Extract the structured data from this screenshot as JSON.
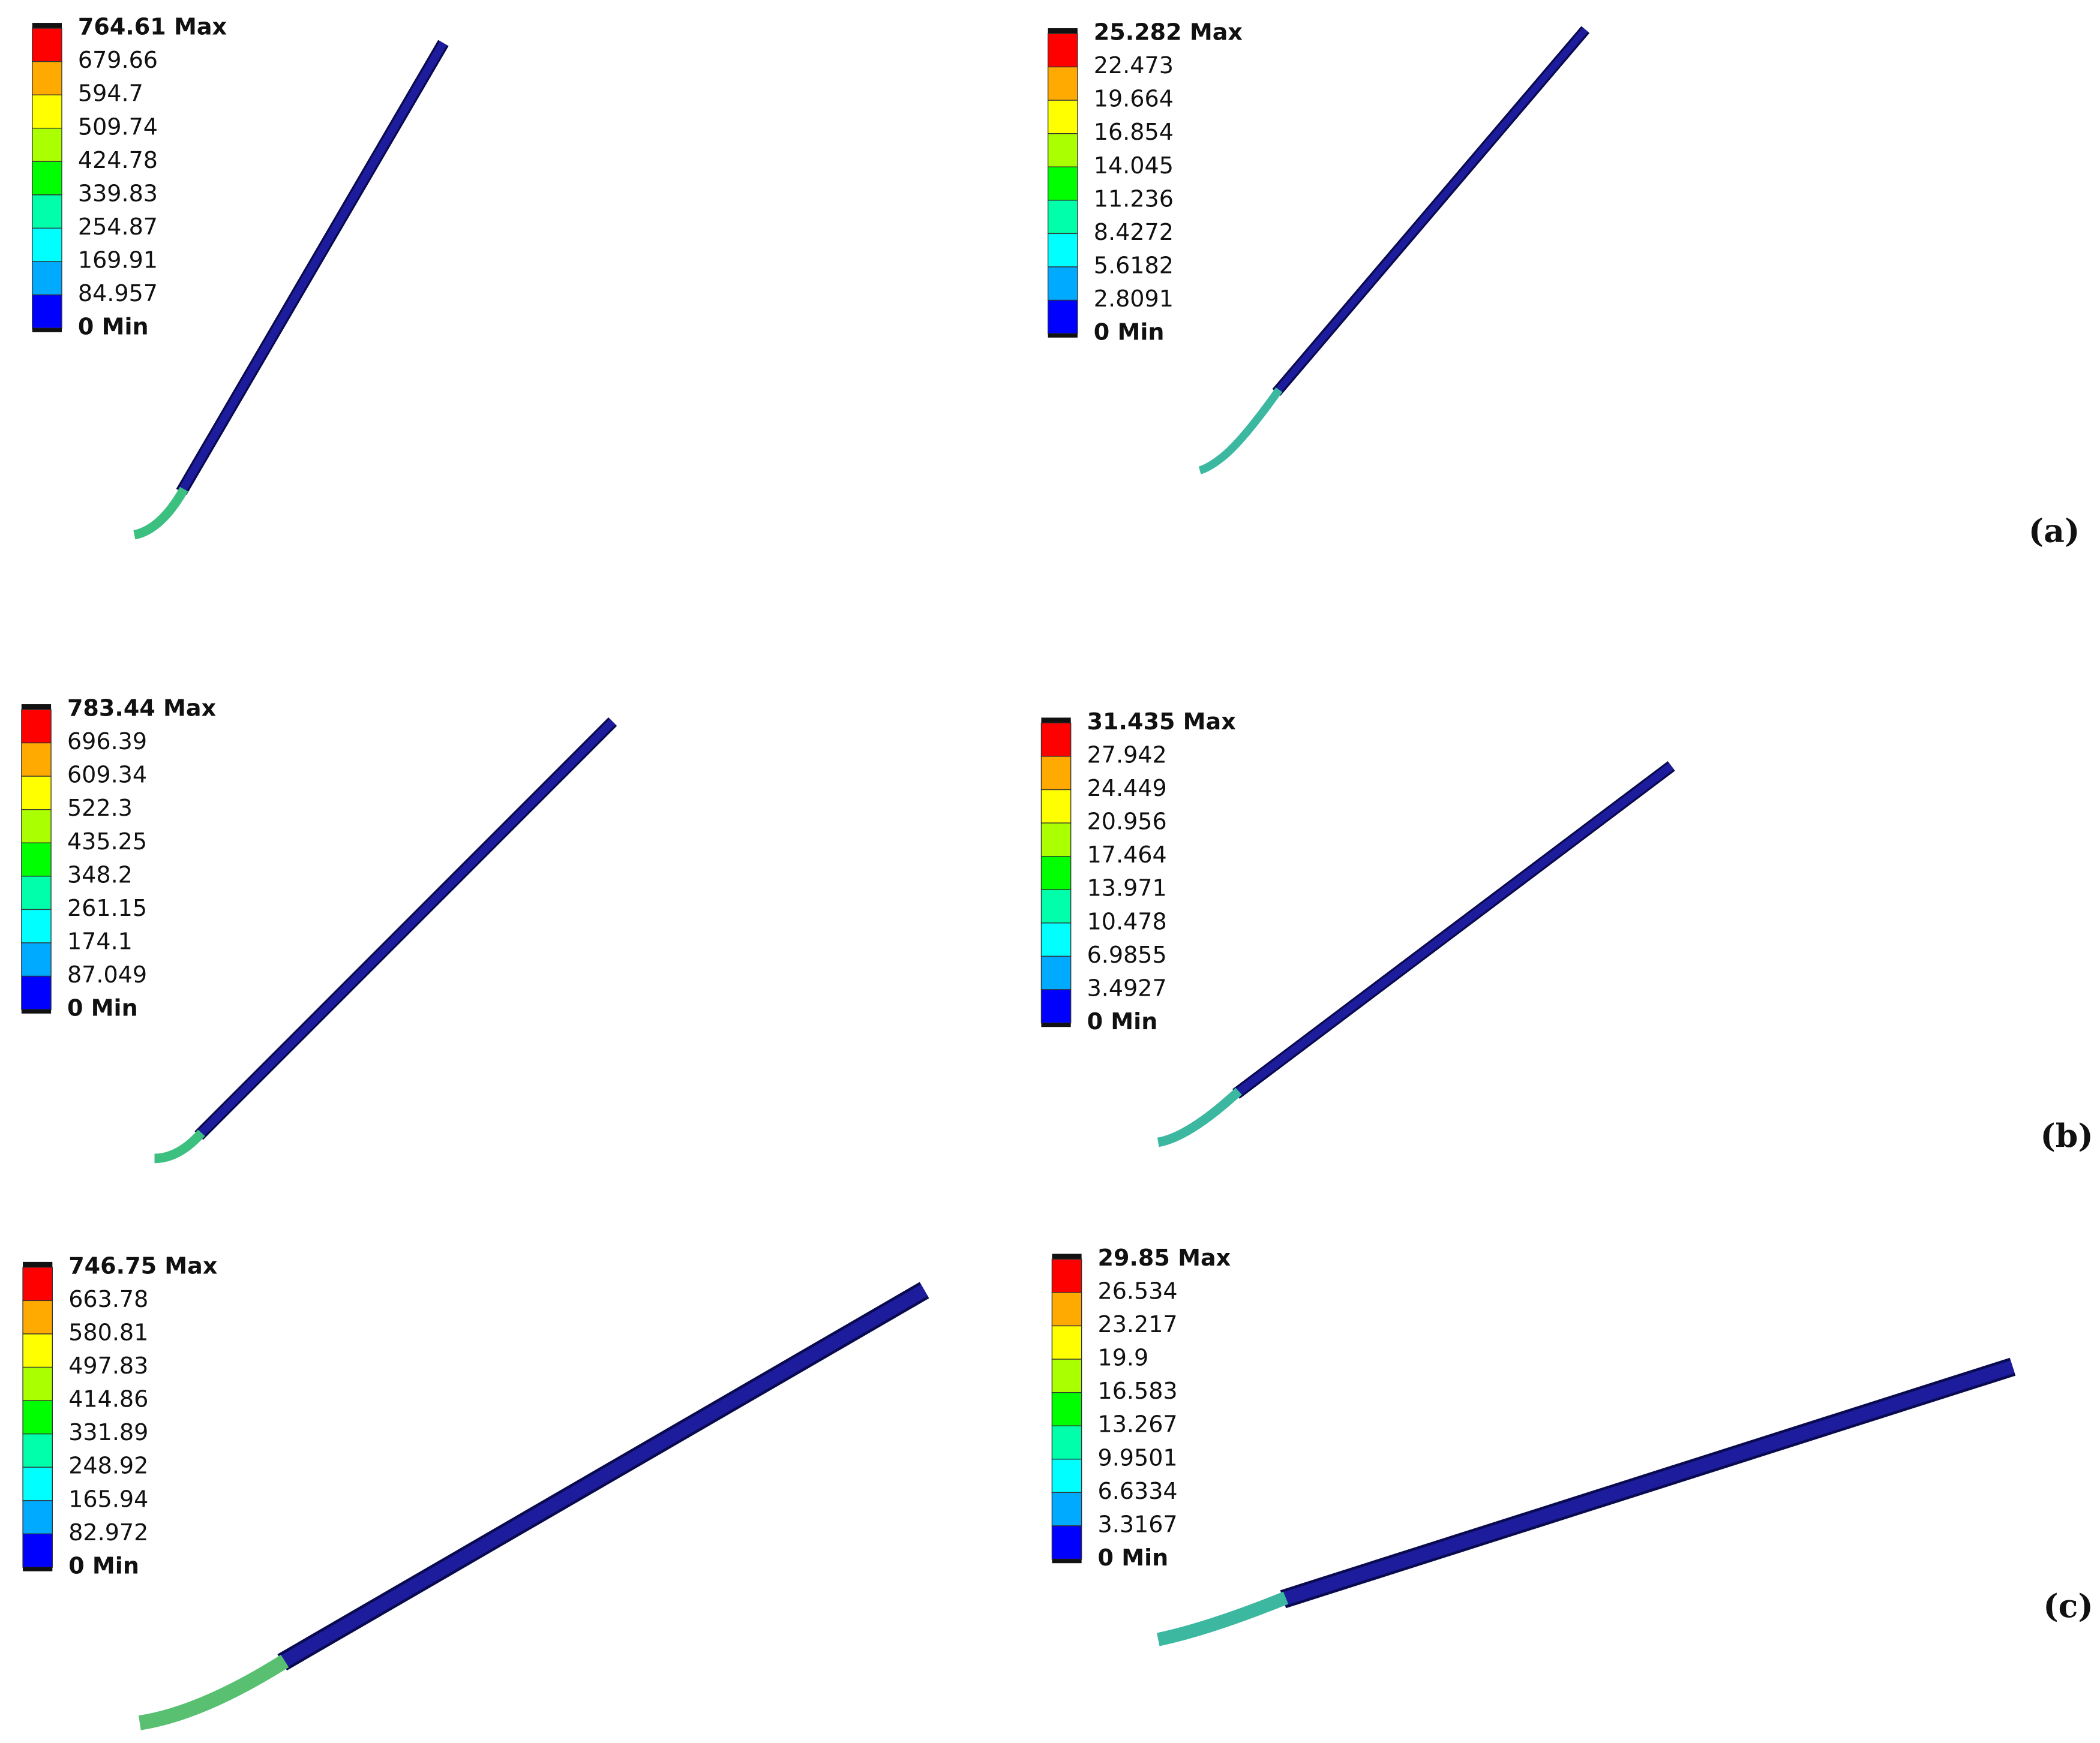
{
  "panels": [
    {
      "legend": [
        "764.61 Max",
        "679.66",
        "594.7",
        "509.74",
        "424.78",
        "339.83",
        "254.87",
        "169.91",
        "84.957",
        "0 Min"
      ]
    },
    {
      "legend": [
        "25.282 Max",
        "22.473",
        "19.664",
        "16.854",
        "14.045",
        "11.236",
        "8.4272",
        "5.6182",
        "2.8091",
        "0 Min"
      ]
    },
    {
      "legend": [
        "783.44 Max",
        "696.39",
        "609.34",
        "522.3",
        "435.25",
        "348.2",
        "261.15",
        "174.1",
        "87.049",
        "0 Min"
      ]
    },
    {
      "legend": [
        "31.435 Max",
        "27.942",
        "24.449",
        "20.956",
        "17.464",
        "13.971",
        "10.478",
        "6.9855",
        "3.4927",
        "0 Min"
      ]
    },
    {
      "legend": [
        "746.75 Max",
        "663.78",
        "580.81",
        "497.83",
        "414.86",
        "331.89",
        "248.92",
        "165.94",
        "82.972",
        "0 Min"
      ]
    },
    {
      "legend": [
        "29.85 Max",
        "26.534",
        "23.217",
        "19.9",
        "16.583",
        "13.267",
        "9.9501",
        "6.6334",
        "3.3167",
        "0 Min"
      ]
    }
  ],
  "row_labels": [
    "(a)",
    "(b)",
    "(c)"
  ]
}
